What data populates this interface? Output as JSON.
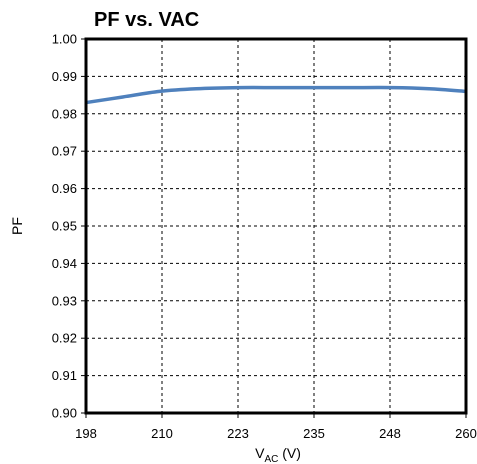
{
  "chart_data": {
    "type": "line",
    "title": "PF vs. VAC",
    "xlabel": {
      "main": "V",
      "sub": "AC",
      "suffix": " (V)"
    },
    "ylabel": "PF",
    "x_ticks": [
      "198",
      "210",
      "223",
      "235",
      "248",
      "260"
    ],
    "y_ticks": [
      "0.90",
      "0.91",
      "0.92",
      "0.93",
      "0.94",
      "0.95",
      "0.96",
      "0.97",
      "0.98",
      "0.99",
      "1.00"
    ],
    "xlim": [
      198,
      260
    ],
    "ylim": [
      0.9,
      1.0
    ],
    "grid": true,
    "series": [
      {
        "color": "#4f81bd",
        "x": [
          198,
          204,
          210,
          216,
          223,
          229,
          235,
          241,
          248,
          254,
          260
        ],
        "y": [
          0.983,
          0.9845,
          0.986,
          0.9867,
          0.987,
          0.987,
          0.987,
          0.987,
          0.987,
          0.9867,
          0.986
        ]
      }
    ]
  }
}
